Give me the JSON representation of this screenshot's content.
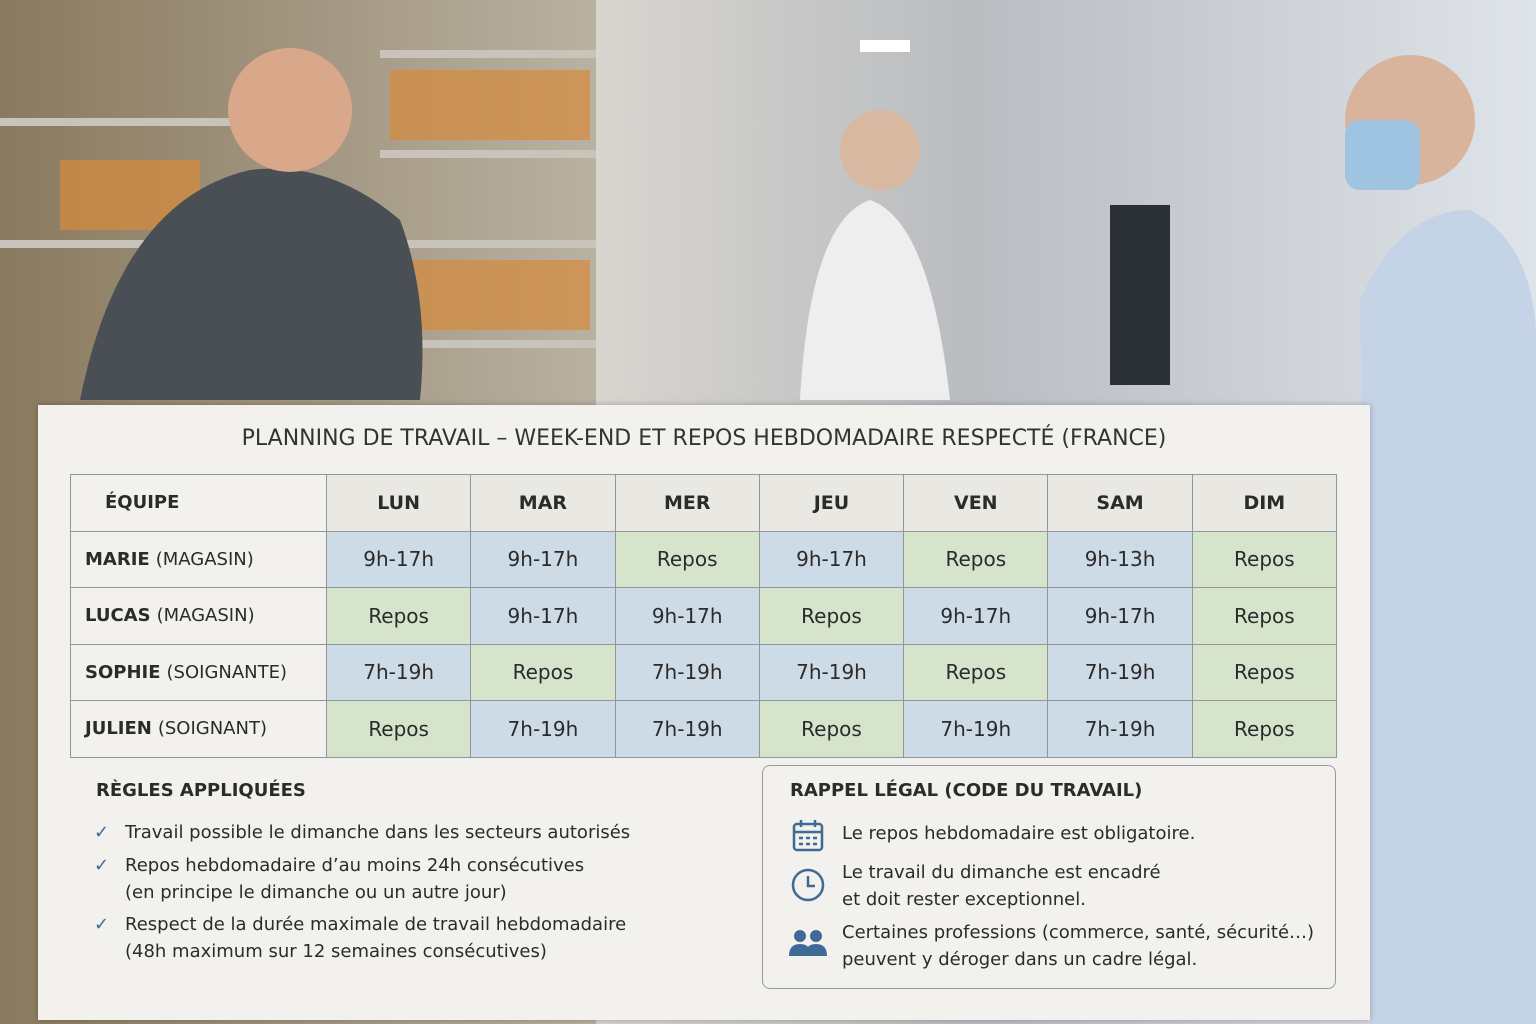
{
  "title": "PLANNING DE TRAVAIL – WEEK-END ET REPOS HEBDOMADAIRE RESPECTÉ (FRANCE)",
  "table": {
    "header": [
      "ÉQUIPE",
      "LUN",
      "MAR",
      "MER",
      "JEU",
      "VEN",
      "SAM",
      "DIM"
    ],
    "cell_fill": {
      "default": "#cddbe6",
      "Repos": "#d6e4cc"
    },
    "rows": [
      {
        "name": "MARIE",
        "role": "(MAGASIN)",
        "cells": [
          "9h-17h",
          "9h-17h",
          "Repos",
          "9h-17h",
          "Repos",
          "9h-13h",
          "Repos"
        ]
      },
      {
        "name": "LUCAS",
        "role": "(MAGASIN)",
        "cells": [
          "Repos",
          "9h-17h",
          "9h-17h",
          "Repos",
          "9h-17h",
          "9h-17h",
          "Repos"
        ]
      },
      {
        "name": "SOPHIE",
        "role": "(SOIGNANTE)",
        "cells": [
          "7h-19h",
          "Repos",
          "7h-19h",
          "7h-19h",
          "Repos",
          "7h-19h",
          "Repos"
        ]
      },
      {
        "name": "JULIEN",
        "role": "(SOIGNANT)",
        "cells": [
          "Repos",
          "7h-19h",
          "7h-19h",
          "Repos",
          "7h-19h",
          "7h-19h",
          "Repos"
        ]
      }
    ]
  },
  "rules": {
    "title": "RÈGLES APPLIQUÉES",
    "items": [
      [
        "Travail possible le dimanche dans les secteurs autorisés"
      ],
      [
        "Repos hebdomadaire d’au moins 24h consécutives",
        "(en principe le dimanche ou un autre jour)"
      ],
      [
        "Respect de la durée maximale de travail hebdomadaire",
        "(48h maximum sur 12 semaines consécutives)"
      ]
    ]
  },
  "legal": {
    "title": "RAPPEL LÉGAL (CODE DU TRAVAIL)",
    "items": [
      [
        "Le repos hebdomadaire est obligatoire."
      ],
      [
        "Le travail du dimanche est encadré",
        "et doit rester exceptionnel."
      ],
      [
        "Certaines professions (commerce, santé, sécurité…)",
        "peuvent y déroger dans un cadre légal."
      ]
    ]
  }
}
